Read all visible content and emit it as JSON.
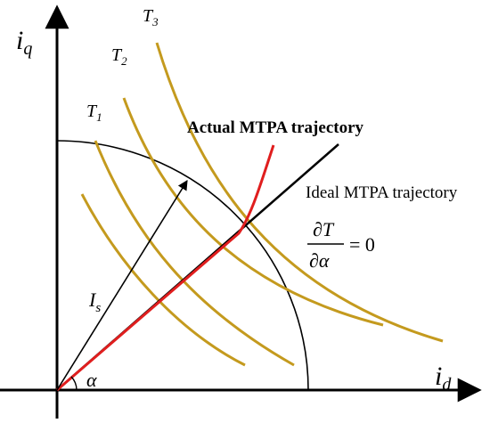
{
  "colors": {
    "torque_curve": "#c49a1e",
    "actual_trajectory": "#e01e1e",
    "ideal_trajectory": "#000000",
    "axes": "#000000",
    "current_circle": "#000000"
  },
  "axes": {
    "horizontal_symbol": "i",
    "horizontal_subscript": "d",
    "vertical_symbol": "i",
    "vertical_subscript": "q"
  },
  "curves": [
    {
      "symbol": "T",
      "subscript": "1"
    },
    {
      "symbol": "T",
      "subscript": "2"
    },
    {
      "symbol": "T",
      "subscript": "3"
    }
  ],
  "labels": {
    "actual": "Actual MTPA trajectory",
    "ideal": "Ideal MTPA trajectory",
    "current_vector_symbol": "I",
    "current_vector_subscript": "s",
    "angle": "α"
  },
  "equation": {
    "numerator": "∂T",
    "denominator": "∂α",
    "rhs": "= 0"
  }
}
